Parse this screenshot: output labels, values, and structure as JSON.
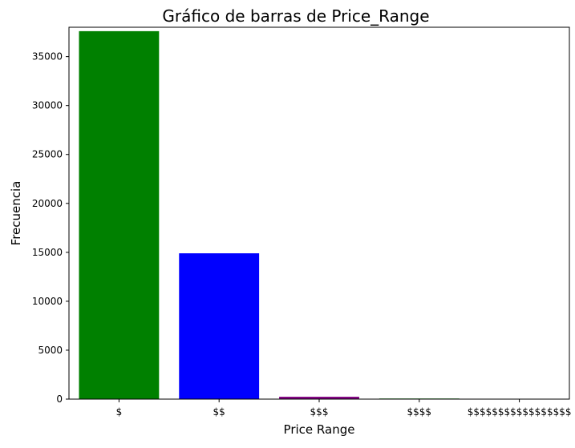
{
  "chart_data": {
    "type": "bar",
    "title": "Gráfico de barras de Price_Range",
    "xlabel": "Price Range",
    "ylabel": "Frecuencia",
    "categories": [
      "$",
      "$$",
      "$$$",
      "$$$$",
      "$$$$$$$$$$$$$$$$$"
    ],
    "values": [
      37600,
      14900,
      240,
      60,
      2
    ],
    "colors": [
      "#008000",
      "#0000ff",
      "#800080",
      "#008000",
      "#0000ff"
    ],
    "ylim": [
      0,
      38000
    ],
    "yticks": [
      0,
      5000,
      10000,
      15000,
      20000,
      25000,
      30000,
      35000
    ],
    "grid": false,
    "legend": "none"
  }
}
